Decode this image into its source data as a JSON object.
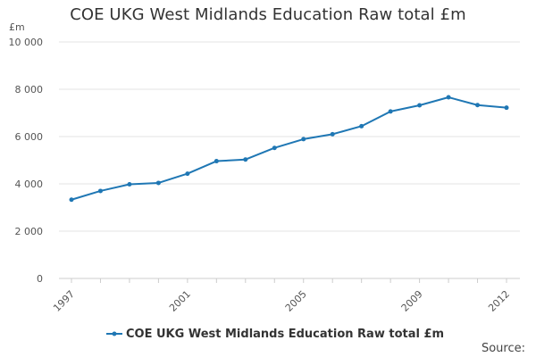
{
  "chart_data": {
    "type": "line",
    "title": "COE UKG West Midlands Education Raw total £m",
    "y_unit": "£m",
    "ylim": [
      0,
      10000
    ],
    "y_ticks": [
      {
        "value": 0,
        "label": "0"
      },
      {
        "value": 2000,
        "label": "2 000"
      },
      {
        "value": 4000,
        "label": "4 000"
      },
      {
        "value": 6000,
        "label": "6 000"
      },
      {
        "value": 8000,
        "label": "8 000"
      },
      {
        "value": 10000,
        "label": "10 000"
      }
    ],
    "x_tick_labels": [
      "1997",
      "2001",
      "2005",
      "2009",
      "2012"
    ],
    "x": [
      1997,
      1998,
      1999,
      2000,
      2001,
      2002,
      2003,
      2004,
      2005,
      2006,
      2007,
      2008,
      2009,
      2010,
      2011,
      2012
    ],
    "series": [
      {
        "name": "COE UKG West Midlands Education Raw total £m",
        "color": "#1f77b4",
        "values": [
          3330,
          3700,
          3980,
          4040,
          4430,
          4960,
          5030,
          5520,
          5890,
          6100,
          6440,
          7060,
          7320,
          7660,
          7330,
          7220
        ]
      }
    ],
    "grid": true,
    "legend_position": "bottom"
  },
  "source_label": "Source:"
}
